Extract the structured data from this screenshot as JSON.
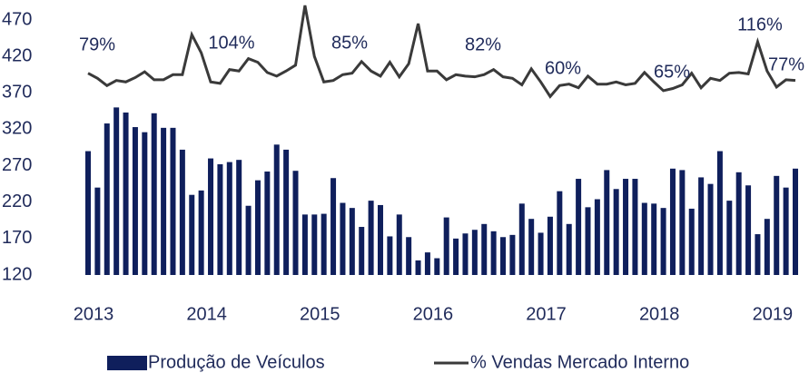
{
  "chart_data": {
    "type": "bar-line",
    "categories": [
      "2013",
      null,
      null,
      null,
      null,
      null,
      null,
      null,
      null,
      null,
      null,
      null,
      "2014",
      null,
      null,
      null,
      null,
      null,
      null,
      null,
      null,
      null,
      null,
      null,
      "2015",
      null,
      null,
      null,
      null,
      null,
      null,
      null,
      null,
      null,
      null,
      null,
      "2016",
      null,
      null,
      null,
      null,
      null,
      null,
      null,
      null,
      null,
      null,
      null,
      "2017",
      null,
      null,
      null,
      null,
      null,
      null,
      null,
      null,
      null,
      null,
      null,
      "2018",
      null,
      null,
      null,
      null,
      null,
      null,
      null,
      null,
      null,
      null,
      null,
      "2019",
      null,
      null,
      null
    ],
    "series": [
      {
        "name": "Produção de Veículos",
        "type": "bar",
        "color": "#0f1f5c",
        "values": [
          290,
          240,
          328,
          350,
          343,
          323,
          316,
          342,
          322,
          322,
          292,
          230,
          236,
          280,
          272,
          275,
          278,
          215,
          250,
          262,
          299,
          292,
          263,
          203,
          203,
          204,
          253,
          219,
          212,
          186,
          222,
          216,
          173,
          203,
          172,
          140,
          151,
          143,
          199,
          170,
          177,
          182,
          190,
          180,
          172,
          175,
          218,
          197,
          178,
          200,
          235,
          190,
          252,
          213,
          224,
          264,
          238,
          252,
          252,
          219,
          218,
          212,
          266,
          264,
          211,
          254,
          245,
          290,
          222,
          261,
          243,
          176,
          197,
          256,
          240,
          266
        ]
      },
      {
        "name": "% Vendas Mercado Interno",
        "type": "line",
        "color": "#3a3a3a",
        "values": [
          397,
          390,
          380,
          387,
          385,
          391,
          399,
          388,
          388,
          395,
          395,
          450,
          425,
          385,
          383,
          402,
          400,
          417,
          412,
          398,
          393,
          400,
          408,
          490,
          420,
          385,
          387,
          395,
          397,
          413,
          400,
          393,
          412,
          392,
          410,
          465,
          400,
          400,
          388,
          395,
          393,
          392,
          395,
          402,
          392,
          390,
          381,
          403,
          385,
          365,
          380,
          382,
          377,
          393,
          382,
          382,
          385,
          381,
          383,
          398,
          385,
          373,
          376,
          381,
          397,
          377,
          390,
          387,
          397,
          398,
          396,
          440,
          400,
          378,
          388,
          387
        ]
      }
    ],
    "annotations": [
      "79%",
      "104%",
      "85%",
      "82%",
      "60%",
      "65%",
      "116%",
      "77%"
    ],
    "ylim": [
      120,
      490
    ],
    "yticks": [
      120,
      170,
      220,
      270,
      320,
      370,
      420,
      470
    ]
  }
}
